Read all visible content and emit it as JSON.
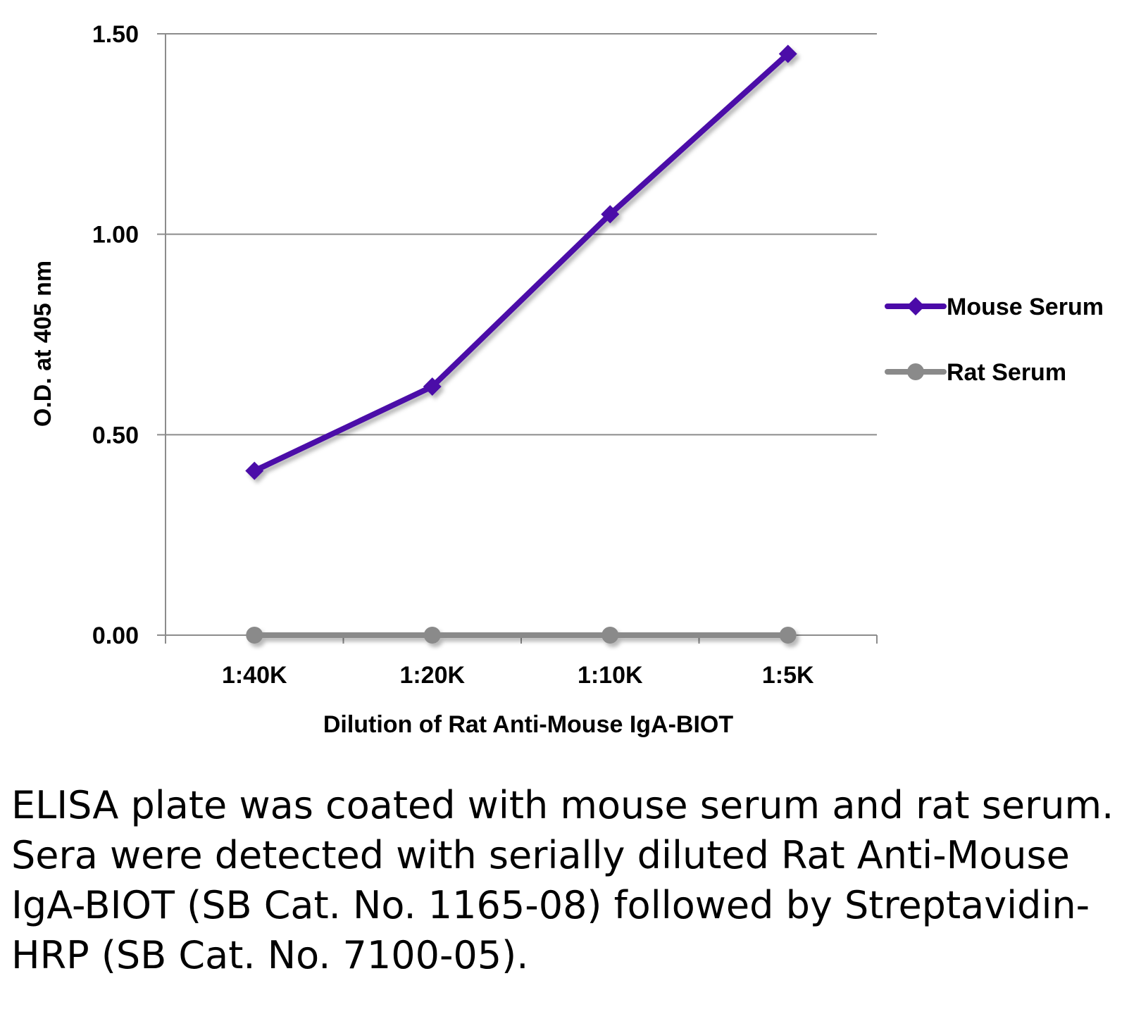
{
  "chart_data": {
    "type": "line",
    "categories": [
      "1:40K",
      "1:20K",
      "1:10K",
      "1:5K"
    ],
    "series": [
      {
        "name": "Mouse Serum",
        "values": [
          0.41,
          0.62,
          1.05,
          1.45
        ],
        "color": "#4b0aa8",
        "marker": "diamond"
      },
      {
        "name": "Rat Serum",
        "values": [
          0.0,
          0.0,
          0.0,
          0.0
        ],
        "color": "#8a8a8a",
        "marker": "circle"
      }
    ],
    "ylabel": "O.D. at 405 nm",
    "xlabel": "Dilution of Rat Anti-Mouse IgA-BIOT",
    "ylim": [
      0,
      1.5
    ],
    "yticks": [
      "0.00",
      "0.50",
      "1.00",
      "1.50"
    ],
    "grid": true,
    "legend": "right"
  },
  "caption": "ELISA plate was coated with mouse serum and rat serum.  Sera were detected with serially diluted Rat Anti-Mouse IgA-BIOT (SB Cat. No. 1165-08) followed by Streptavidin-HRP (SB Cat. No. 7100-05)."
}
